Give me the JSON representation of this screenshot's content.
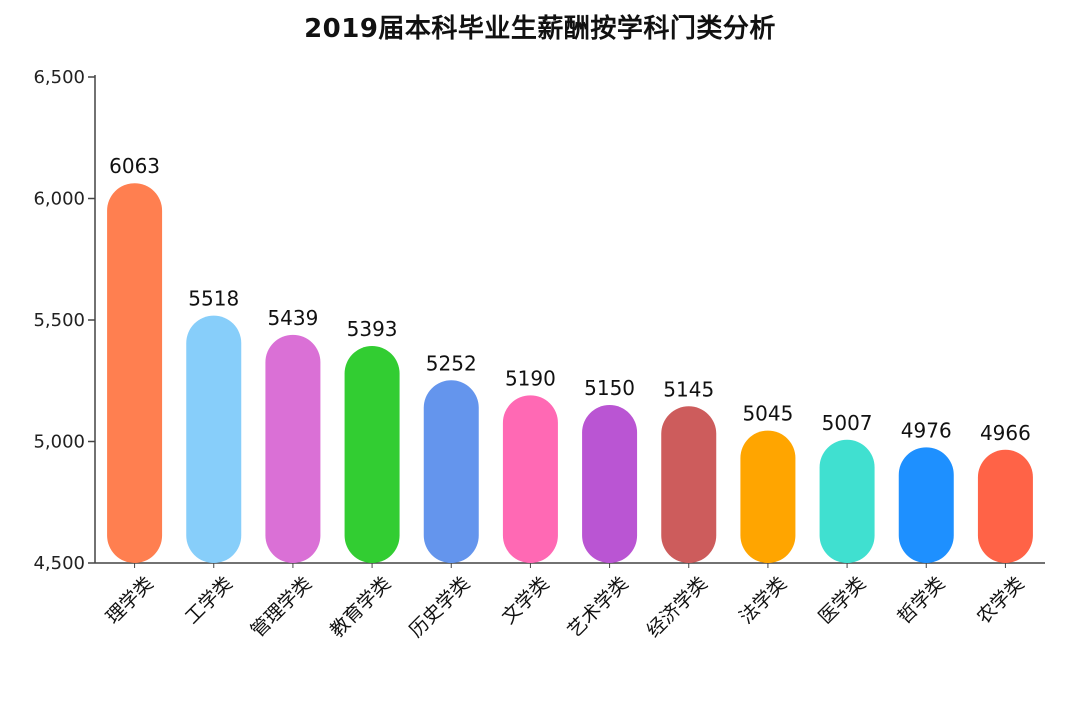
{
  "chart_data": {
    "type": "bar",
    "title": "2019届本科毕业生薪酬按学科门类分析",
    "xlabel": "",
    "ylabel": "",
    "ylim": [
      4500,
      6500
    ],
    "yticks": [
      4500,
      5000,
      5500,
      6000,
      6500
    ],
    "ytick_labels": [
      "4,500",
      "5,000",
      "5,500",
      "6,000",
      "6,500"
    ],
    "grid": false,
    "legend": "none",
    "categories": [
      "理学类",
      "工学类",
      "管理学类",
      "教育学类",
      "历史学类",
      "文学类",
      "艺术学类",
      "经济学类",
      "法学类",
      "医学类",
      "哲学类",
      "农学类"
    ],
    "values": [
      6063,
      5518,
      5439,
      5393,
      5252,
      5190,
      5150,
      5145,
      5045,
      5007,
      4976,
      4966
    ],
    "value_labels": [
      "6063",
      "5518",
      "5439",
      "5393",
      "5252",
      "5190",
      "5150",
      "5145",
      "5045",
      "5007",
      "4976",
      "4966"
    ],
    "colors": [
      "#FF7F50",
      "#87CEFA",
      "#DA70D6",
      "#32CD32",
      "#6495ED",
      "#FF69B4",
      "#BA55D3",
      "#CD5C5C",
      "#FFA500",
      "#40E0D0",
      "#1E90FF",
      "#FF6347"
    ]
  }
}
